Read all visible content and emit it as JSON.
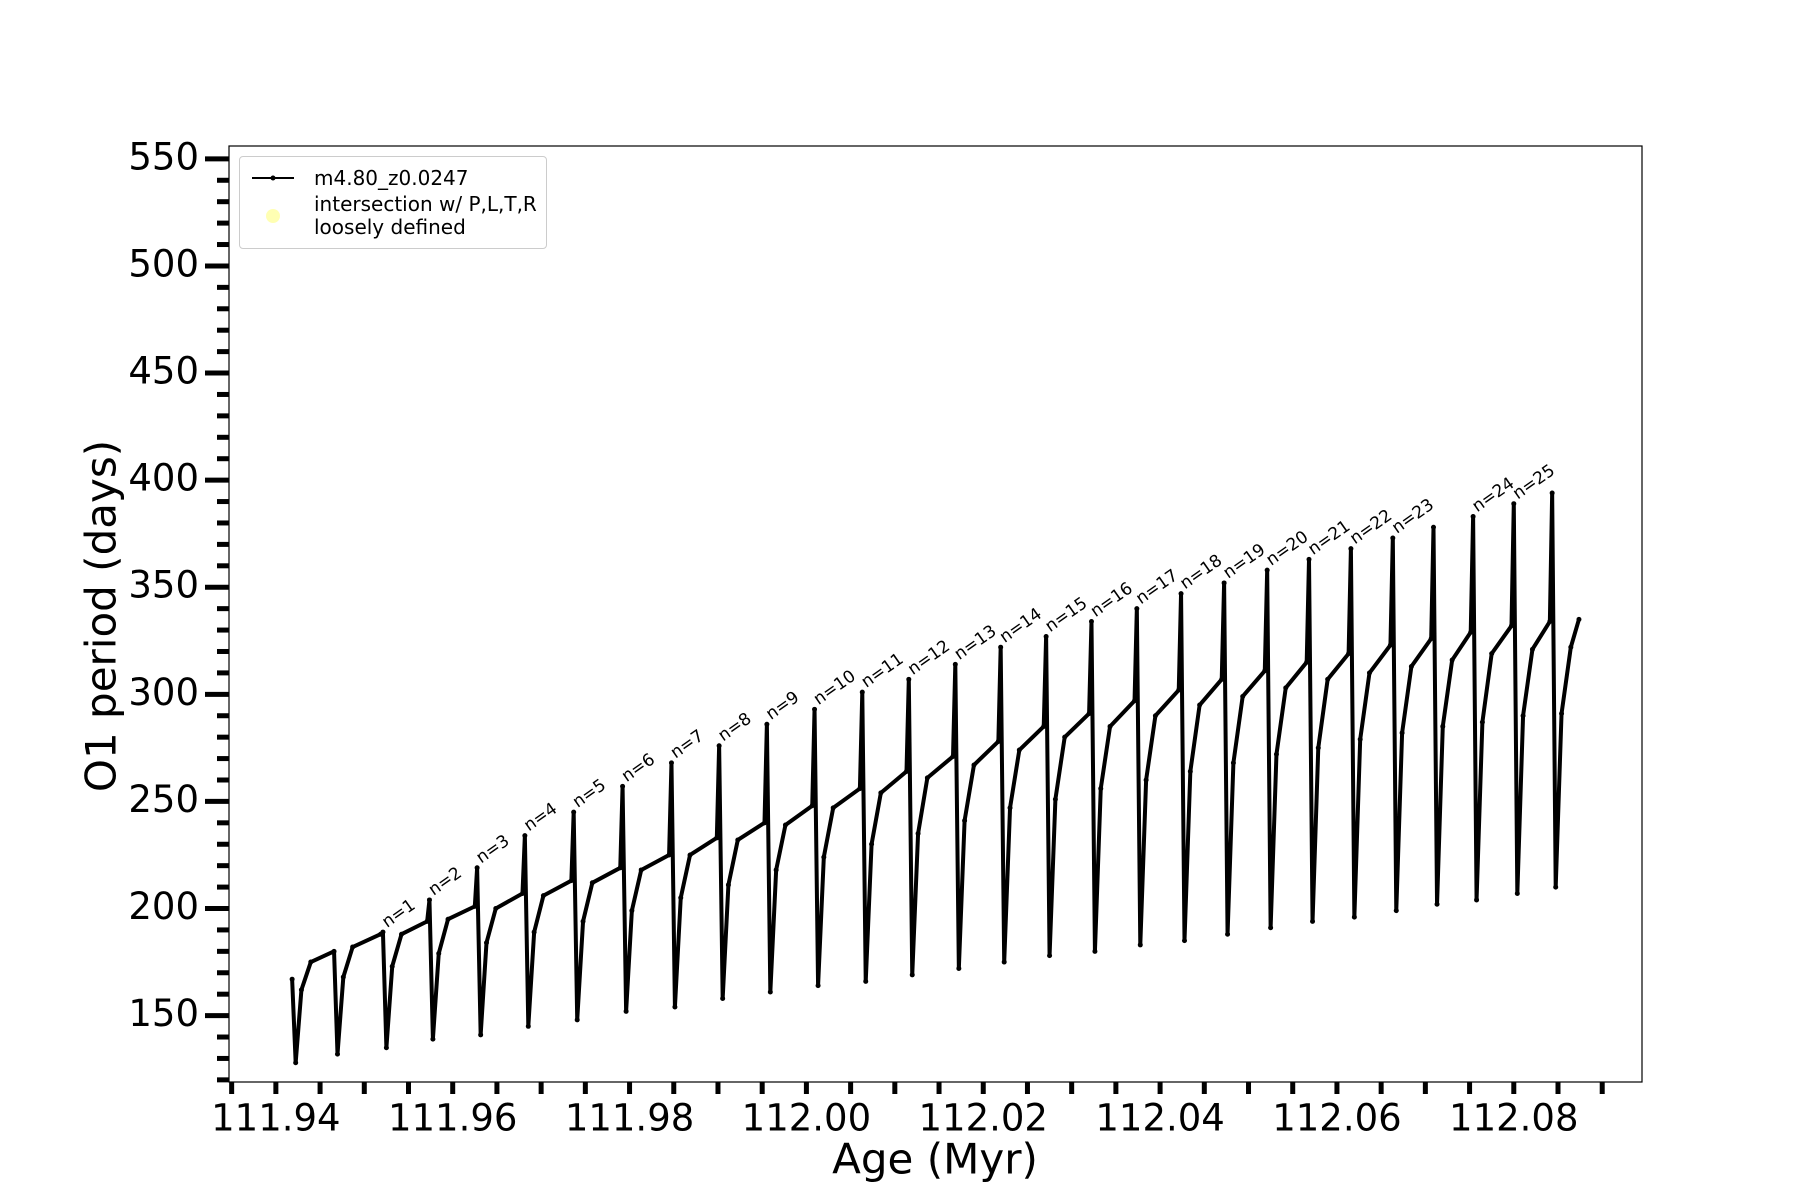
{
  "chart_data": {
    "type": "line",
    "xlabel": "Age (Myr)",
    "ylabel": "O1 period (days)",
    "xlim": [
      111.9347,
      112.0945
    ],
    "ylim": [
      119,
      556
    ],
    "xticks": [
      111.94,
      111.96,
      111.98,
      {
        "value": 112,
        "label": "112.00"
      },
      112.02,
      112.04,
      112.06,
      112.08
    ],
    "xminorticks": [
      111.935,
      111.945,
      111.95,
      111.955,
      111.965,
      111.97,
      111.975,
      111.985,
      111.99,
      111.995,
      112.005,
      112.01,
      112.015,
      112.025,
      112.03,
      112.035,
      112.045,
      112.05,
      112.055,
      112.065,
      112.07,
      112.075,
      112.085,
      112.09
    ],
    "yticks": [
      150,
      200,
      250,
      300,
      350,
      400,
      450,
      500,
      550
    ],
    "yminorticks": [
      120,
      130,
      140,
      160,
      170,
      180,
      190,
      210,
      220,
      230,
      240,
      260,
      270,
      280,
      290,
      310,
      320,
      330,
      340,
      360,
      370,
      380,
      390,
      410,
      420,
      430,
      440,
      460,
      470,
      480,
      490,
      510,
      520,
      530,
      540
    ],
    "legend": "upper left",
    "series": [
      {
        "name": "m4.80_z0.0247",
        "color": "#000000",
        "x": [
          111.94184,
          111.94224,
          111.94289,
          111.94395,
          111.94658,
          111.94697,
          111.94763,
          111.94868,
          111.95184,
          111.95211,
          111.9525,
          111.95316,
          111.95421,
          111.95711,
          111.95737,
          111.95776,
          111.95842,
          111.95947,
          111.9625,
          111.96276,
          111.96316,
          111.96382,
          111.96487,
          111.96789,
          111.96816,
          111.96855,
          111.96921,
          111.97026,
          111.97342,
          111.97368,
          111.97408,
          111.97474,
          111.97579,
          111.97895,
          111.97921,
          111.97961,
          111.98026,
          111.98132,
          111.98447,
          111.98474,
          111.98513,
          111.98579,
          111.98684,
          111.98987,
          111.99013,
          111.99053,
          111.99118,
          111.99224,
          111.99526,
          111.99553,
          111.99592,
          111.99658,
          111.99763,
          112.00066,
          112.00092,
          112.00132,
          112.00197,
          112.00303,
          112.00605,
          112.00632,
          112.00671,
          112.00737,
          112.00842,
          112.01132,
          112.01158,
          112.01197,
          112.01263,
          112.01368,
          112.01658,
          112.01684,
          112.01724,
          112.01789,
          112.01895,
          112.02171,
          112.02197,
          112.02237,
          112.02303,
          112.02408,
          112.02684,
          112.02711,
          112.0275,
          112.02816,
          112.02921,
          112.03197,
          112.03224,
          112.03263,
          112.03329,
          112.03434,
          112.03711,
          112.03737,
          112.03776,
          112.03842,
          112.03947,
          112.04211,
          112.04237,
          112.04276,
          112.04342,
          112.04447,
          112.04697,
          112.04724,
          112.04763,
          112.04829,
          112.04934,
          112.05184,
          112.05211,
          112.0525,
          112.05316,
          112.05421,
          112.05658,
          112.05684,
          112.05724,
          112.05789,
          112.05895,
          112.06132,
          112.06158,
          112.06197,
          112.06263,
          112.06368,
          112.06605,
          112.06632,
          112.06671,
          112.06737,
          112.06842,
          112.07066,
          112.07092,
          112.07132,
          112.07197,
          112.07303,
          112.07513,
          112.0754,
          112.07579,
          112.07645,
          112.0775,
          112.07974,
          112.08,
          112.0804,
          112.08105,
          112.08211,
          112.08408,
          112.08434,
          112.08474,
          112.0854,
          112.08645,
          112.08737
        ],
        "values": [
          167,
          128,
          162,
          175,
          180,
          132,
          168,
          182,
          188,
          189,
          135,
          173,
          188,
          194,
          204,
          139,
          179,
          195,
          201,
          219,
          141,
          184,
          200,
          207,
          234,
          145,
          189,
          206,
          213,
          245,
          148,
          194,
          212,
          219,
          257,
          152,
          199,
          218,
          225,
          268,
          154,
          205,
          225,
          233,
          276,
          158,
          211,
          232,
          240,
          286,
          161,
          218,
          239,
          248,
          293,
          164,
          224,
          247,
          256,
          301,
          166,
          230,
          254,
          264,
          307,
          169,
          235,
          261,
          271,
          314,
          172,
          241,
          267,
          278,
          322,
          175,
          247,
          274,
          285,
          327,
          178,
          251,
          280,
          291,
          334,
          180,
          256,
          285,
          297,
          340,
          183,
          260,
          290,
          302,
          347,
          185,
          264,
          295,
          307,
          352,
          188,
          268,
          299,
          311,
          358,
          191,
          272,
          303,
          315,
          363,
          194,
          275,
          307,
          319,
          368,
          196,
          279,
          310,
          323,
          373,
          199,
          282,
          313,
          326,
          378,
          202,
          285,
          316,
          329,
          383,
          204,
          287,
          319,
          332,
          389,
          207,
          290,
          321,
          334,
          394,
          210,
          291,
          322,
          335
        ]
      },
      {
        "name": "intersection w/ P,L,T,R\nloosely defined",
        "color": "#ffffb3",
        "x": [],
        "values": []
      }
    ],
    "annotations": [
      {
        "text": "n=1",
        "x": 111.95211,
        "y": 189
      },
      {
        "text": "n=2",
        "x": 111.95737,
        "y": 204
      },
      {
        "text": "n=3",
        "x": 111.96276,
        "y": 219
      },
      {
        "text": "n=4",
        "x": 111.96816,
        "y": 234
      },
      {
        "text": "n=5",
        "x": 111.97368,
        "y": 245
      },
      {
        "text": "n=6",
        "x": 111.97921,
        "y": 257
      },
      {
        "text": "n=7",
        "x": 111.98474,
        "y": 268
      },
      {
        "text": "n=8",
        "x": 111.99013,
        "y": 276
      },
      {
        "text": "n=9",
        "x": 111.99553,
        "y": 286
      },
      {
        "text": "n=10",
        "x": 112.00092,
        "y": 293
      },
      {
        "text": "n=11",
        "x": 112.00632,
        "y": 301
      },
      {
        "text": "n=12",
        "x": 112.01158,
        "y": 307
      },
      {
        "text": "n=13",
        "x": 112.01684,
        "y": 314
      },
      {
        "text": "n=14",
        "x": 112.02197,
        "y": 322
      },
      {
        "text": "n=15",
        "x": 112.02711,
        "y": 327
      },
      {
        "text": "n=16",
        "x": 112.03224,
        "y": 334
      },
      {
        "text": "n=17",
        "x": 112.03737,
        "y": 340
      },
      {
        "text": "n=18",
        "x": 112.04237,
        "y": 347
      },
      {
        "text": "n=19",
        "x": 112.04724,
        "y": 352
      },
      {
        "text": "n=20",
        "x": 112.05211,
        "y": 358
      },
      {
        "text": "n=21",
        "x": 112.05684,
        "y": 363
      },
      {
        "text": "n=22",
        "x": 112.06158,
        "y": 368
      },
      {
        "text": "n=23",
        "x": 112.06632,
        "y": 373
      },
      {
        "text": "n=24",
        "x": 112.0754,
        "y": 383
      },
      {
        "text": "n=25",
        "x": 112.08,
        "y": 389
      }
    ]
  }
}
